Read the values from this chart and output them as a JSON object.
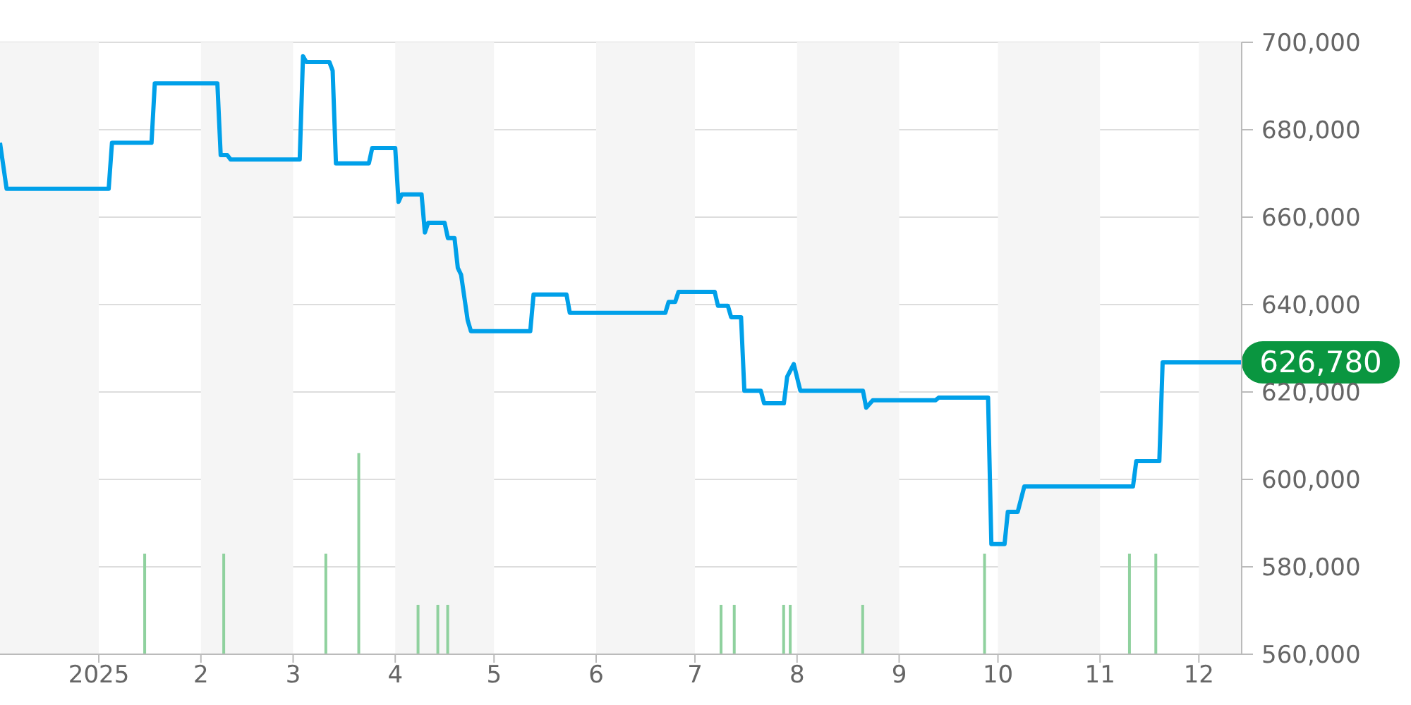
{
  "chart_data": {
    "type": "line",
    "xlim": [
      "2024-12-02",
      "2025-12-14"
    ],
    "xticks": [
      {
        "value": "2025-01-01",
        "label": "2025"
      },
      {
        "value": "2025-02-01",
        "label": "2"
      },
      {
        "value": "2025-03-01",
        "label": "3"
      },
      {
        "value": "2025-04-01",
        "label": "4"
      },
      {
        "value": "2025-05-01",
        "label": "5"
      },
      {
        "value": "2025-06-01",
        "label": "6"
      },
      {
        "value": "2025-07-01",
        "label": "7"
      },
      {
        "value": "2025-08-01",
        "label": "8"
      },
      {
        "value": "2025-09-01",
        "label": "9"
      },
      {
        "value": "2025-10-01",
        "label": "10"
      },
      {
        "value": "2025-11-01",
        "label": "11"
      },
      {
        "value": "2025-12-01",
        "label": "12"
      }
    ],
    "ylim": [
      560000,
      700000
    ],
    "yticks": [
      {
        "value": 560000,
        "label": "560,000"
      },
      {
        "value": 580000,
        "label": "580,000"
      },
      {
        "value": 600000,
        "label": "600,000"
      },
      {
        "value": 620000,
        "label": "620,000"
      },
      {
        "value": 640000,
        "label": "640,000"
      },
      {
        "value": 660000,
        "label": "660,000"
      },
      {
        "value": 680000,
        "label": "680,000"
      },
      {
        "value": 700000,
        "label": "700,000"
      }
    ],
    "grid": "y",
    "series": [
      {
        "color": "#00a0e9",
        "x": [
          "2024-12-02",
          "2024-12-04",
          "2025-01-04",
          "2025-01-05",
          "2025-01-17",
          "2025-01-18",
          "2025-02-06",
          "2025-02-07",
          "2025-02-09",
          "2025-02-10",
          "2025-03-03",
          "2025-03-04",
          "2025-03-05",
          "2025-03-12",
          "2025-03-13",
          "2025-03-14",
          "2025-03-24",
          "2025-03-25",
          "2025-04-01",
          "2025-04-02",
          "2025-04-03",
          "2025-04-09",
          "2025-04-10",
          "2025-04-11",
          "2025-04-16",
          "2025-04-17",
          "2025-04-19",
          "2025-04-20",
          "2025-04-21",
          "2025-04-23",
          "2025-04-24",
          "2025-05-12",
          "2025-05-13",
          "2025-05-23",
          "2025-05-24",
          "2025-06-22",
          "2025-06-23",
          "2025-06-25",
          "2025-06-26",
          "2025-07-07",
          "2025-07-08",
          "2025-07-11",
          "2025-07-12",
          "2025-07-15",
          "2025-07-16",
          "2025-07-21",
          "2025-07-22",
          "2025-07-28",
          "2025-07-29",
          "2025-07-31",
          "2025-08-02",
          "2025-08-21",
          "2025-08-22",
          "2025-08-24",
          "2025-09-12",
          "2025-09-13",
          "2025-09-28",
          "2025-09-29",
          "2025-10-03",
          "2025-10-04",
          "2025-10-07",
          "2025-10-09",
          "2025-11-11",
          "2025-11-12",
          "2025-11-19",
          "2025-11-20",
          "2025-12-14"
        ],
        "values": [
          677000,
          666500,
          666500,
          677000,
          677000,
          690600,
          690600,
          674200,
          674200,
          673200,
          673200,
          696800,
          695500,
          695500,
          693500,
          672300,
          672300,
          675800,
          675800,
          663500,
          665200,
          665200,
          656500,
          658700,
          658700,
          655200,
          655200,
          648400,
          646800,
          636400,
          633900,
          633900,
          642300,
          642300,
          638100,
          638100,
          640600,
          640600,
          642900,
          642900,
          639700,
          639700,
          637100,
          637100,
          620300,
          620300,
          617400,
          617400,
          623500,
          626400,
          620300,
          620300,
          616400,
          618100,
          618100,
          618700,
          618700,
          585200,
          585200,
          592600,
          592600,
          598400,
          598400,
          604200,
          604200,
          626780,
          626780
        ]
      },
      {
        "type": "bar",
        "color": "#8fd19e",
        "x": [
          "2025-01-15",
          "2025-02-08",
          "2025-03-11",
          "2025-03-21",
          "2025-04-08",
          "2025-04-14",
          "2025-04-17",
          "2025-07-09",
          "2025-07-13",
          "2025-07-28",
          "2025-07-30",
          "2025-08-21",
          "2025-09-27",
          "2025-11-10",
          "2025-11-18"
        ],
        "values": [
          583000,
          583000,
          583000,
          606000,
          571300,
          571300,
          571300,
          571300,
          571300,
          571300,
          571300,
          571300,
          583000,
          583000,
          583000
        ]
      }
    ],
    "bands": [
      {
        "axis": "x",
        "from": "2024-12-02",
        "to": "2025-01-01",
        "color": "#f5f5f5"
      },
      {
        "axis": "x",
        "from": "2025-02-01",
        "to": "2025-03-01",
        "color": "#f5f5f5"
      },
      {
        "axis": "x",
        "from": "2025-04-01",
        "to": "2025-05-01",
        "color": "#f5f5f5"
      },
      {
        "axis": "x",
        "from": "2025-06-01",
        "to": "2025-07-01",
        "color": "#f5f5f5"
      },
      {
        "axis": "x",
        "from": "2025-08-01",
        "to": "2025-09-01",
        "color": "#f5f5f5"
      },
      {
        "axis": "x",
        "from": "2025-10-01",
        "to": "2025-11-01",
        "color": "#f5f5f5"
      },
      {
        "axis": "x",
        "from": "2025-12-01",
        "to": "2025-12-14",
        "color": "#f5f5f5"
      }
    ],
    "annotations": [
      {
        "text": "626,780",
        "x": "2025-12-14",
        "y": 626780
      }
    ]
  }
}
